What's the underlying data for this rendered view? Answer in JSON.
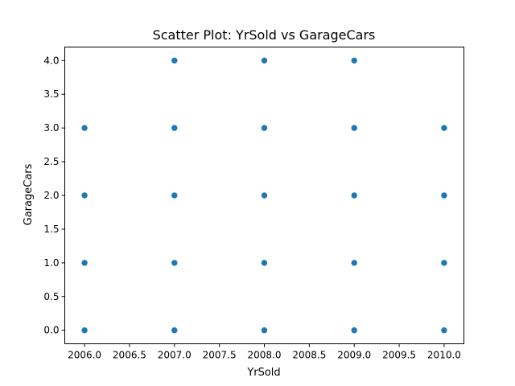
{
  "chart_data": {
    "type": "scatter",
    "title": "Scatter Plot: YrSold vs GarageCars",
    "xlabel": "YrSold",
    "ylabel": "GarageCars",
    "xlim": [
      2005.78,
      2010.22
    ],
    "ylim": [
      -0.2,
      4.2
    ],
    "xticks": [
      2006.0,
      2006.5,
      2007.0,
      2007.5,
      2008.0,
      2008.5,
      2009.0,
      2009.5,
      2010.0
    ],
    "xtick_labels": [
      "2006.0",
      "2006.5",
      "2007.0",
      "2007.5",
      "2008.0",
      "2008.5",
      "2009.0",
      "2009.5",
      "2010.0"
    ],
    "yticks": [
      0.0,
      0.5,
      1.0,
      1.5,
      2.0,
      2.5,
      3.0,
      3.5,
      4.0
    ],
    "ytick_labels": [
      "0.0",
      "0.5",
      "1.0",
      "1.5",
      "2.0",
      "2.5",
      "3.0",
      "3.5",
      "4.0"
    ],
    "grid": false,
    "marker_color": "#1f77b4",
    "points": [
      {
        "x": 2006,
        "y": 0
      },
      {
        "x": 2006,
        "y": 1
      },
      {
        "x": 2006,
        "y": 2
      },
      {
        "x": 2006,
        "y": 3
      },
      {
        "x": 2007,
        "y": 0
      },
      {
        "x": 2007,
        "y": 1
      },
      {
        "x": 2007,
        "y": 2
      },
      {
        "x": 2007,
        "y": 3
      },
      {
        "x": 2007,
        "y": 4
      },
      {
        "x": 2008,
        "y": 0
      },
      {
        "x": 2008,
        "y": 1
      },
      {
        "x": 2008,
        "y": 2
      },
      {
        "x": 2008,
        "y": 3
      },
      {
        "x": 2008,
        "y": 4
      },
      {
        "x": 2009,
        "y": 0
      },
      {
        "x": 2009,
        "y": 1
      },
      {
        "x": 2009,
        "y": 2
      },
      {
        "x": 2009,
        "y": 3
      },
      {
        "x": 2009,
        "y": 4
      },
      {
        "x": 2010,
        "y": 0
      },
      {
        "x": 2010,
        "y": 1
      },
      {
        "x": 2010,
        "y": 2
      },
      {
        "x": 2010,
        "y": 3
      }
    ]
  }
}
